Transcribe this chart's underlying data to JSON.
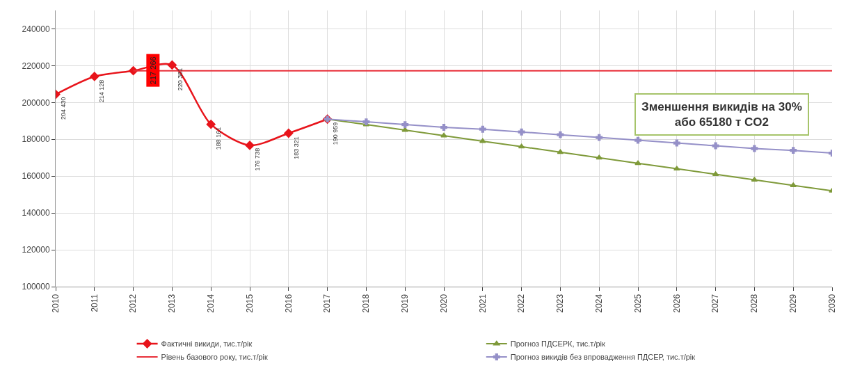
{
  "chart_data": {
    "type": "line",
    "categories": [
      "2010",
      "2011",
      "2012",
      "2013",
      "2014",
      "2015",
      "2016",
      "2017",
      "2018",
      "2019",
      "2020",
      "2021",
      "2022",
      "2023",
      "2024",
      "2025",
      "2026",
      "2027",
      "2028",
      "2029",
      "2030"
    ],
    "series": [
      {
        "name": "Фактичні викиди, тис.т/рік",
        "color": "#e8141b",
        "marker": "diamond",
        "values": [
          204430,
          214128,
          217266,
          220381,
          188161,
          176738,
          183321,
          190959,
          null,
          null,
          null,
          null,
          null,
          null,
          null,
          null,
          null,
          null,
          null,
          null,
          null
        ],
        "value_labels": [
          "204 430",
          "214 128",
          null,
          "220 381",
          "188 161",
          "176 738",
          "183 321",
          "190 959",
          null,
          null,
          null,
          null,
          null,
          null,
          null,
          null,
          null,
          null,
          null,
          null,
          null
        ]
      },
      {
        "name": "Прогноз ПДСЕРК, тис.т/рік",
        "color": "#7f9a3a",
        "marker": "triangle",
        "values": [
          null,
          null,
          null,
          null,
          null,
          null,
          null,
          191000,
          188000,
          185000,
          182000,
          179000,
          176000,
          173000,
          170000,
          167000,
          164000,
          161000,
          158000,
          155000,
          152000
        ]
      },
      {
        "name": "Рівень базового року, тис.т/рік",
        "color": "#e8303a",
        "marker": "none",
        "values": [
          null,
          null,
          217266,
          217266,
          217266,
          217266,
          217266,
          217266,
          217266,
          217266,
          217266,
          217266,
          217266,
          217266,
          217266,
          217266,
          217266,
          217266,
          217266,
          217266,
          217266
        ]
      },
      {
        "name": "Прогноз викидів без впровадження ПДСЕР, тис.т/рік",
        "color": "#9590c8",
        "marker": "cross",
        "values": [
          null,
          null,
          null,
          null,
          null,
          null,
          null,
          191000,
          189500,
          188000,
          186500,
          185500,
          184000,
          182500,
          181000,
          179500,
          178000,
          176500,
          175000,
          174000,
          172500
        ]
      }
    ],
    "annotations": [
      {
        "text": "217 266",
        "x": "2012",
        "y": 217266
      },
      "Зменшення викидів на 30%\nабо 65180 т CO2"
    ],
    "ylim": [
      100000,
      250000
    ],
    "yticks": [
      100000,
      120000,
      140000,
      160000,
      180000,
      200000,
      220000,
      240000
    ],
    "grid": true,
    "legend": "bottom"
  }
}
